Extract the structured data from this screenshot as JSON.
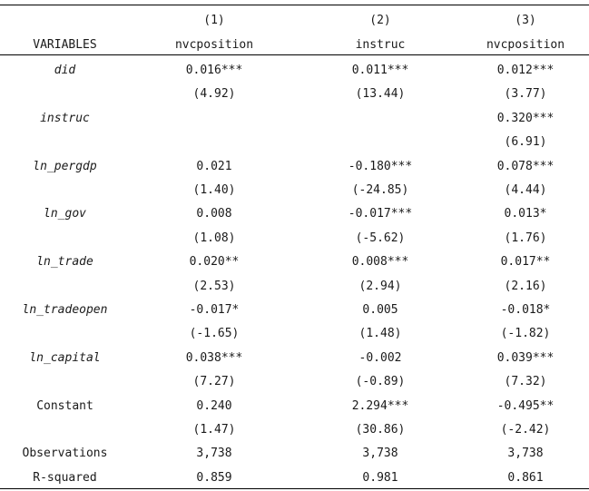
{
  "header": {
    "col_numbers": [
      "(1)",
      "(2)",
      "(3)"
    ],
    "variables_label": "VARIABLES",
    "col_names": [
      "nvcposition",
      "instruc",
      "nvcposition"
    ]
  },
  "rows": [
    {
      "name": "did",
      "italic": true,
      "coef": [
        "0.016***",
        "0.011***",
        "0.012***"
      ],
      "t": [
        "(4.92)",
        "(13.44)",
        "(3.77)"
      ]
    },
    {
      "name": "instruc",
      "italic": true,
      "coef": [
        "",
        "",
        "0.320***"
      ],
      "t": [
        "",
        "",
        "(6.91)"
      ]
    },
    {
      "name": "ln_pergdp",
      "italic": true,
      "coef": [
        "0.021",
        "-0.180***",
        "0.078***"
      ],
      "t": [
        "(1.40)",
        "(-24.85)",
        "(4.44)"
      ]
    },
    {
      "name": "ln_gov",
      "italic": true,
      "coef": [
        "0.008",
        "-0.017***",
        "0.013*"
      ],
      "t": [
        "(1.08)",
        "(-5.62)",
        "(1.76)"
      ]
    },
    {
      "name": "ln_trade",
      "italic": true,
      "coef": [
        "0.020**",
        "0.008***",
        "0.017**"
      ],
      "t": [
        "(2.53)",
        "(2.94)",
        "(2.16)"
      ]
    },
    {
      "name": "ln_tradeopen",
      "italic": true,
      "coef": [
        "-0.017*",
        "0.005",
        "-0.018*"
      ],
      "t": [
        "(-1.65)",
        "(1.48)",
        "(-1.82)"
      ]
    },
    {
      "name": "ln_capital",
      "italic": true,
      "coef": [
        "0.038***",
        "-0.002",
        "0.039***"
      ],
      "t": [
        "(7.27)",
        "(-0.89)",
        "(7.32)"
      ]
    },
    {
      "name": "Constant",
      "italic": false,
      "coef": [
        "0.240",
        "2.294***",
        "-0.495**"
      ],
      "t": [
        "(1.47)",
        "(30.86)",
        "(-2.42)"
      ]
    }
  ],
  "footer": [
    {
      "name": "Observations",
      "values": [
        "3,738",
        "3,738",
        "3,738"
      ]
    },
    {
      "name": "R-squared",
      "values": [
        "0.859",
        "0.981",
        "0.861"
      ]
    }
  ]
}
